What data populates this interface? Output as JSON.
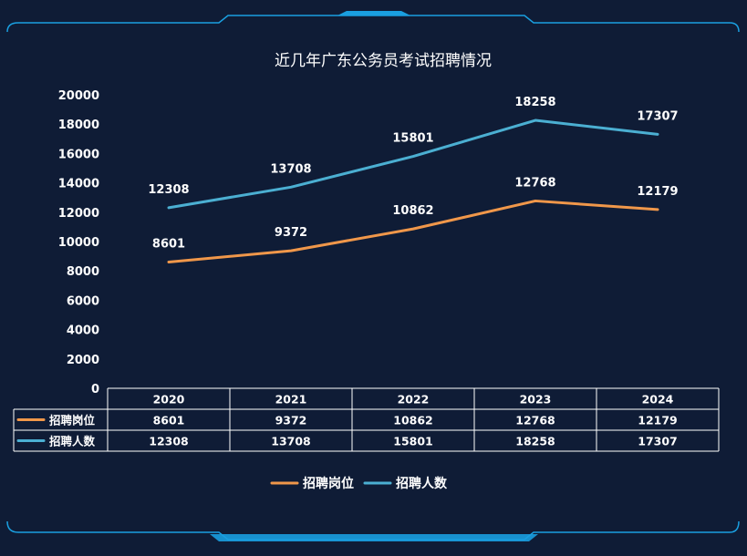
{
  "colors": {
    "background": "#0f1c36",
    "frame": "#1a9fe0",
    "series_orange": "#f0974a",
    "series_blue": "#4bafd2"
  },
  "chart_data": {
    "type": "line",
    "title": "近几年广东公务员考试招聘情况",
    "categories": [
      "2020",
      "2021",
      "2022",
      "2023",
      "2024"
    ],
    "series": [
      {
        "name": "招聘岗位",
        "color": "#f0974a",
        "values": [
          8601,
          9372,
          10862,
          12768,
          12179
        ]
      },
      {
        "name": "招聘人数",
        "color": "#4bafd2",
        "values": [
          12308,
          13708,
          15801,
          18258,
          17307
        ]
      }
    ],
    "yticks": [
      0,
      2000,
      4000,
      6000,
      8000,
      10000,
      12000,
      14000,
      16000,
      18000,
      20000
    ],
    "ylim": [
      0,
      20000
    ],
    "grid": false,
    "legend_position": "bottom",
    "data_table": true
  }
}
